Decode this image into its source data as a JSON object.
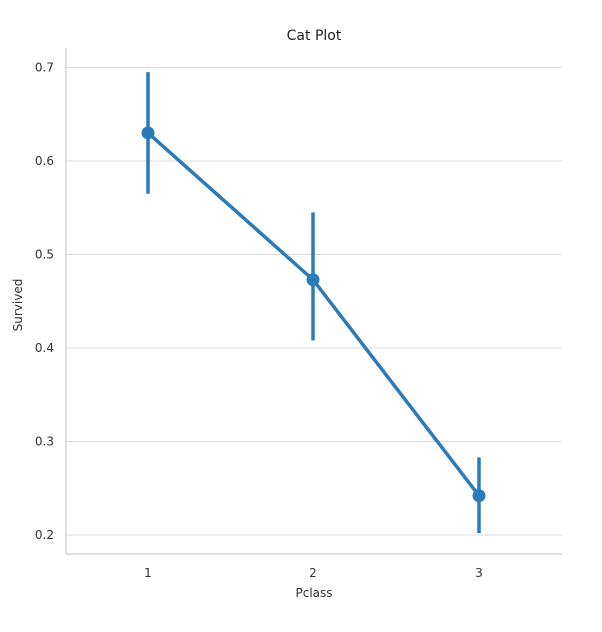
{
  "chart_data": {
    "type": "line",
    "title": "Cat Plot",
    "xlabel": "Pclass",
    "ylabel": "Survived",
    "categories": [
      "1",
      "2",
      "3"
    ],
    "series": [
      {
        "values": [
          0.63,
          0.473,
          0.242
        ],
        "ci_low": [
          0.565,
          0.408,
          0.202
        ],
        "ci_high": [
          0.695,
          0.545,
          0.283
        ]
      }
    ],
    "yticks": [
      "0.2",
      "0.3",
      "0.4",
      "0.5",
      "0.6",
      "0.7"
    ],
    "ylim": [
      0.18,
      0.72
    ],
    "grid": "horizontal",
    "color": "#2b7bba"
  }
}
